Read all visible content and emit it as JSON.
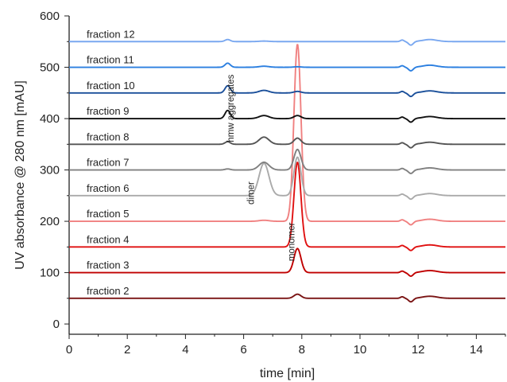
{
  "chart_data": {
    "type": "line",
    "title": "",
    "xlabel": "time [min]",
    "ylabel": "UV absorbance @ 280 nm [mAU]",
    "xlim": [
      0,
      15
    ],
    "ylim": [
      -20,
      600
    ],
    "xticks": [
      0,
      2,
      4,
      6,
      8,
      10,
      12,
      14
    ],
    "yticks": [
      0,
      100,
      200,
      300,
      400,
      500,
      600
    ],
    "grid": false,
    "legend": "none (series labelled inline above each trace)",
    "series": [
      {
        "name": "fraction 2",
        "color": "#7a1414",
        "baseline": 50,
        "peaks": {
          "hmw": 0,
          "dimer": 0,
          "monomer": 8
        }
      },
      {
        "name": "fraction 3",
        "color": "#c00000",
        "baseline": 100,
        "peaks": {
          "hmw": 0,
          "dimer": 0,
          "monomer": 47
        }
      },
      {
        "name": "fraction 4",
        "color": "#e01010",
        "baseline": 150,
        "peaks": {
          "hmw": 0,
          "dimer": 0,
          "monomer": 165
        }
      },
      {
        "name": "fraction 5",
        "color": "#f08080",
        "baseline": 200,
        "peaks": {
          "hmw": 0,
          "dimer": 2,
          "monomer": 345
        }
      },
      {
        "name": "fraction 6",
        "color": "#aaaaaa",
        "baseline": 250,
        "peaks": {
          "hmw": 0,
          "dimer": 63,
          "monomer": 75
        }
      },
      {
        "name": "fraction 7",
        "color": "#808080",
        "baseline": 300,
        "peaks": {
          "hmw": 2,
          "dimer": 15,
          "monomer": 40
        }
      },
      {
        "name": "fraction 8",
        "color": "#555555",
        "baseline": 350,
        "peaks": {
          "hmw": 5,
          "dimer": 14,
          "monomer": 12
        }
      },
      {
        "name": "fraction 9",
        "color": "#111111",
        "baseline": 400,
        "peaks": {
          "hmw": 16,
          "dimer": 6,
          "monomer": 6
        }
      },
      {
        "name": "fraction 10",
        "color": "#1a4f9a",
        "baseline": 450,
        "peaks": {
          "hmw": 14,
          "dimer": 5,
          "monomer": 3
        }
      },
      {
        "name": "fraction 11",
        "color": "#2b7fe0",
        "baseline": 500,
        "peaks": {
          "hmw": 8,
          "dimer": 2,
          "monomer": 1
        }
      },
      {
        "name": "fraction 12",
        "color": "#7aa8f0",
        "baseline": 550,
        "peaks": {
          "hmw": 4,
          "dimer": 1,
          "monomer": 0
        }
      }
    ],
    "peak_times": {
      "hmw": 5.45,
      "dimer": 6.7,
      "monomer": 7.85
    },
    "annotations": [
      {
        "text": "hmw aggregates",
        "x": 5.65,
        "y": 420
      },
      {
        "text": "dimer",
        "x": 6.35,
        "y": 255
      },
      {
        "text": "monomer",
        "x": 7.75,
        "y": 160
      }
    ]
  }
}
